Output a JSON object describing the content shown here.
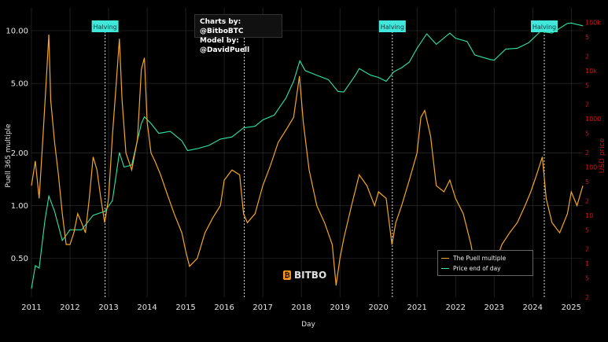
{
  "credit": {
    "line1": "Charts by: @BitboBTC",
    "line2": "Model by: @DavidPuell"
  },
  "logo": {
    "text": "BITBO",
    "mark": "₿"
  },
  "colors": {
    "puell": "#f5a623",
    "price": "#2ee6a6",
    "halving_bg": "#41e7da",
    "right_axis": "#cc1111",
    "grid": "#333333"
  },
  "chart_data": {
    "type": "line",
    "xlabel": "Day",
    "ylabel_left": "Puell 365 multiple",
    "ylabel_right": "USD price",
    "x_ticks": [
      "2011",
      "2012",
      "2013",
      "2014",
      "2015",
      "2016",
      "2017",
      "2018",
      "2019",
      "2020",
      "2021",
      "2022",
      "2023",
      "2024",
      "2025"
    ],
    "y_left_ticks": [
      "10.00",
      "5.00",
      "2.00",
      "1.00",
      "0.50"
    ],
    "y_left_tick_values": [
      10,
      5,
      2,
      1,
      0.5
    ],
    "y_left_scale": "log",
    "y_left_range": [
      0.3,
      13.5
    ],
    "y_right_scale": "log",
    "y_right_range": [
      0.2,
      200000
    ],
    "y_right_ticks": [
      "100k",
      "5",
      "2",
      "10k",
      "5",
      "2",
      "1000",
      "5",
      "2",
      "100",
      "5",
      "2",
      "10",
      "5",
      "2",
      "1",
      "5",
      "2"
    ],
    "y_right_tick_values": [
      100000,
      50000,
      20000,
      10000,
      5000,
      2000,
      1000,
      500,
      200,
      100,
      50,
      20,
      10,
      5,
      2,
      1,
      0.5,
      0.2
    ],
    "x_range": [
      2011.0,
      2025.3
    ],
    "halvings": [
      {
        "label": "Halving",
        "date": 2012.91
      },
      {
        "label": "Halving",
        "date": 2016.52
      },
      {
        "label": "Halving",
        "date": 2020.36
      },
      {
        "label": "Halving",
        "date": 2024.3
      }
    ],
    "legend_position": "bottom-right",
    "series": [
      {
        "name": "The Puell multiple",
        "x": [
          2011.0,
          2011.1,
          2011.2,
          2011.3,
          2011.4,
          2011.45,
          2011.5,
          2011.6,
          2011.7,
          2011.8,
          2011.9,
          2012.0,
          2012.1,
          2012.2,
          2012.3,
          2012.4,
          2012.5,
          2012.6,
          2012.7,
          2012.8,
          2012.9,
          2013.0,
          2013.1,
          2013.2,
          2013.28,
          2013.35,
          2013.45,
          2013.6,
          2013.75,
          2013.85,
          2013.93,
          2014.0,
          2014.1,
          2014.2,
          2014.35,
          2014.5,
          2014.7,
          2014.9,
          2015.0,
          2015.1,
          2015.3,
          2015.5,
          2015.7,
          2015.9,
          2016.0,
          2016.2,
          2016.4,
          2016.5,
          2016.6,
          2016.8,
          2017.0,
          2017.2,
          2017.4,
          2017.6,
          2017.8,
          2017.95,
          2018.05,
          2018.2,
          2018.4,
          2018.6,
          2018.8,
          2018.9,
          2019.0,
          2019.1,
          2019.3,
          2019.5,
          2019.7,
          2019.9,
          2020.0,
          2020.2,
          2020.35,
          2020.45,
          2020.6,
          2020.8,
          2021.0,
          2021.1,
          2021.2,
          2021.35,
          2021.5,
          2021.7,
          2021.85,
          2022.0,
          2022.2,
          2022.4,
          2022.5,
          2022.7,
          2022.9,
          2023.0,
          2023.2,
          2023.4,
          2023.6,
          2023.8,
          2023.95,
          2024.1,
          2024.25,
          2024.35,
          2024.5,
          2024.7,
          2024.9,
          2025.0,
          2025.15,
          2025.3
        ],
        "values": [
          1.3,
          1.8,
          1.1,
          2.5,
          6.0,
          9.5,
          4.0,
          2.3,
          1.5,
          0.9,
          0.6,
          0.6,
          0.7,
          0.9,
          0.8,
          0.7,
          1.1,
          1.9,
          1.6,
          1.1,
          0.8,
          1.1,
          2.5,
          5.0,
          9.0,
          4.0,
          2.0,
          1.6,
          2.4,
          6.0,
          7.0,
          3.0,
          2.0,
          1.8,
          1.5,
          1.2,
          0.9,
          0.7,
          0.55,
          0.45,
          0.5,
          0.7,
          0.85,
          1.0,
          1.4,
          1.6,
          1.5,
          0.9,
          0.8,
          0.9,
          1.3,
          1.7,
          2.3,
          2.7,
          3.2,
          5.5,
          3.0,
          1.6,
          1.0,
          0.8,
          0.6,
          0.35,
          0.5,
          0.65,
          1.0,
          1.5,
          1.3,
          1.0,
          1.2,
          1.1,
          0.6,
          0.8,
          1.0,
          1.4,
          2.0,
          3.2,
          3.5,
          2.5,
          1.3,
          1.2,
          1.4,
          1.1,
          0.9,
          0.6,
          0.45,
          0.5,
          0.5,
          0.45,
          0.6,
          0.7,
          0.8,
          1.0,
          1.2,
          1.5,
          1.9,
          1.1,
          0.8,
          0.7,
          0.9,
          1.2,
          1.0,
          1.3
        ]
      },
      {
        "name": "Price end of day",
        "x": [
          2011.0,
          2011.1,
          2011.2,
          2011.35,
          2011.45,
          2011.6,
          2011.8,
          2012.0,
          2012.3,
          2012.6,
          2012.9,
          2013.1,
          2013.28,
          2013.4,
          2013.6,
          2013.85,
          2013.93,
          2014.1,
          2014.3,
          2014.6,
          2014.9,
          2015.05,
          2015.3,
          2015.6,
          2015.9,
          2016.2,
          2016.5,
          2016.8,
          2017.0,
          2017.3,
          2017.6,
          2017.8,
          2017.96,
          2018.1,
          2018.4,
          2018.7,
          2018.95,
          2019.1,
          2019.4,
          2019.5,
          2019.8,
          2020.0,
          2020.2,
          2020.4,
          2020.6,
          2020.8,
          2021.0,
          2021.25,
          2021.5,
          2021.85,
          2022.0,
          2022.3,
          2022.5,
          2022.9,
          2023.0,
          2023.3,
          2023.6,
          2023.9,
          2024.2,
          2024.5,
          2024.9,
          2025.0,
          2025.3
        ],
        "values": [
          0.3,
          0.9,
          0.8,
          8,
          25,
          12,
          3,
          5,
          5,
          10,
          12,
          20,
          200,
          100,
          110,
          800,
          1100,
          800,
          500,
          550,
          350,
          220,
          240,
          280,
          380,
          420,
          650,
          700,
          950,
          1200,
          2700,
          6000,
          16000,
          10000,
          8000,
          6500,
          3700,
          3600,
          8000,
          11000,
          8000,
          7200,
          6000,
          9500,
          11500,
          15000,
          29000,
          58000,
          35000,
          60000,
          47000,
          40000,
          21000,
          17000,
          16500,
          28000,
          29000,
          38000,
          65000,
          60000,
          95000,
          97000,
          85000
        ]
      }
    ]
  }
}
